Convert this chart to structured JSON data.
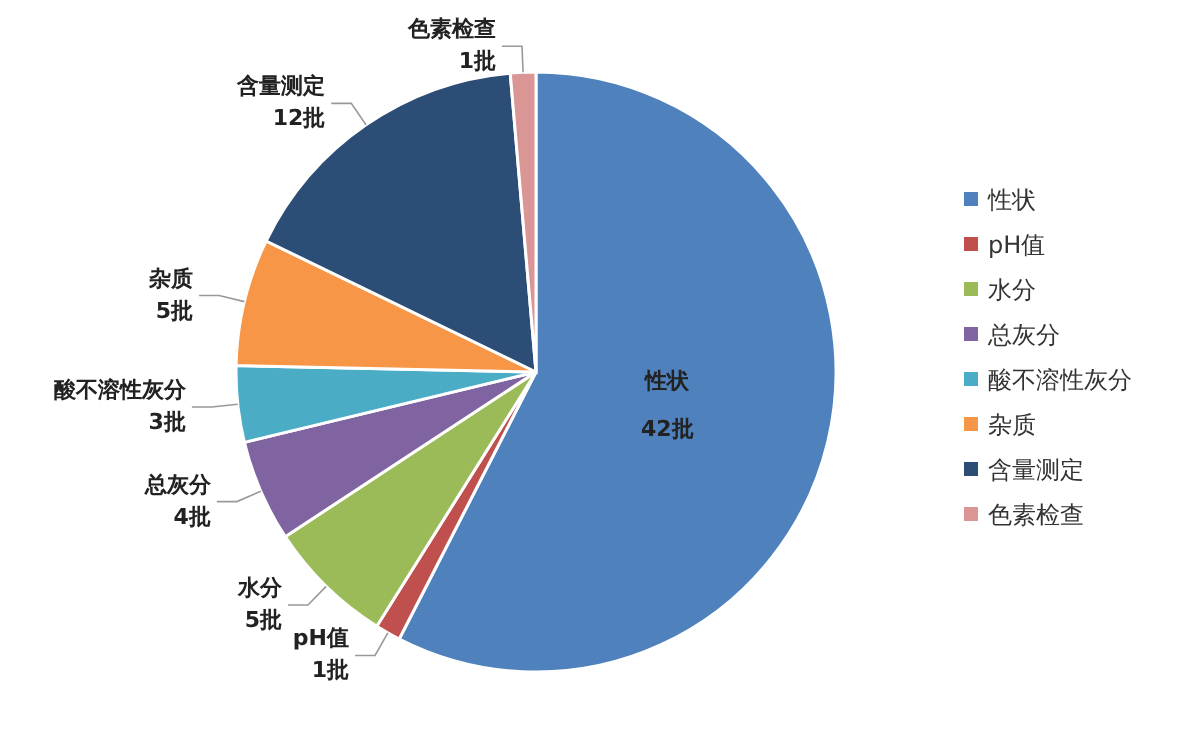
{
  "chart_data": {
    "type": "pie",
    "categories": [
      "性状",
      "pH值",
      "水分",
      "总灰分",
      "酸不溶性灰分",
      "杂质",
      "含量测定",
      "色素检查"
    ],
    "values": [
      42,
      1,
      5,
      4,
      3,
      5,
      12,
      1
    ],
    "colors": [
      "#4f81bd",
      "#c0504d",
      "#9bbb59",
      "#8064a2",
      "#4bacc6",
      "#f79646",
      "#2c4d75",
      "#d99694"
    ],
    "value_labels": [
      "42批",
      "1批",
      "5批",
      "4批",
      "3批",
      "5批",
      "12批",
      "1批"
    ],
    "legend": "right"
  }
}
